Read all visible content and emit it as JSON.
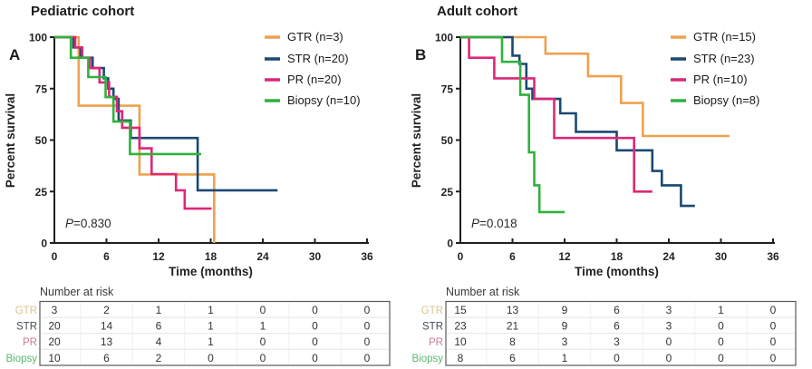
{
  "figure": {
    "background": "#ffffff",
    "axis_color": "#231f20",
    "table_border_color": "#58595b",
    "table_grid_color": "#e4e4e4"
  },
  "chart_data": [
    {
      "type": "line",
      "subtype": "kaplan-meier-step",
      "panel_label": "A",
      "title": "Pediatric cohort",
      "xlabel": "Time (months)",
      "ylabel": "Percent survival",
      "xlim": [
        0,
        36
      ],
      "ylim": [
        0,
        100
      ],
      "xticks": [
        0,
        6,
        12,
        18,
        24,
        30,
        36
      ],
      "yticks": [
        100,
        75,
        50,
        25,
        0
      ],
      "grid": false,
      "legend_position": "top-right",
      "p_value": {
        "prefix": "P",
        "rest": "=0.830"
      },
      "risk_table_header": "Number at risk",
      "series": [
        {
          "name": "GTR",
          "legend": "GTR (n=3)",
          "color": "#EFA14E",
          "risk_label_color": "#DBC38D",
          "number_at_risk": [
            3,
            2,
            1,
            1,
            0,
            0,
            0
          ],
          "steps": [
            [
              0,
              100
            ],
            [
              2.8,
              100
            ],
            [
              2.8,
              66.7
            ],
            [
              9.8,
              66.7
            ],
            [
              9.8,
              33.3
            ],
            [
              18.4,
              33.3
            ],
            [
              18.4,
              0
            ]
          ]
        },
        {
          "name": "STR",
          "legend": "STR (n=20)",
          "color": "#1A4971",
          "risk_label_color": "#414E59",
          "number_at_risk": [
            20,
            14,
            6,
            1,
            1,
            0,
            0
          ],
          "steps": [
            [
              0,
              100
            ],
            [
              2.2,
              100
            ],
            [
              2.2,
              95
            ],
            [
              3,
              95
            ],
            [
              3,
              90
            ],
            [
              4.4,
              90
            ],
            [
              4.4,
              85
            ],
            [
              5.7,
              85
            ],
            [
              5.7,
              80
            ],
            [
              6.2,
              80
            ],
            [
              6.2,
              75
            ],
            [
              6.8,
              75
            ],
            [
              6.8,
              70
            ],
            [
              7.4,
              70
            ],
            [
              7.4,
              59.5
            ],
            [
              8.8,
              59.5
            ],
            [
              8.8,
              51
            ],
            [
              16.5,
              51
            ],
            [
              16.5,
              25.6
            ],
            [
              25.7,
              25.6
            ]
          ]
        },
        {
          "name": "PR",
          "legend": "PR (n=20)",
          "color": "#DC2878",
          "risk_label_color": "#C97B96",
          "number_at_risk": [
            20,
            13,
            4,
            1,
            0,
            0,
            0
          ],
          "steps": [
            [
              0,
              100
            ],
            [
              2.4,
              100
            ],
            [
              2.4,
              95
            ],
            [
              3.2,
              95
            ],
            [
              3.2,
              90
            ],
            [
              4.1,
              90
            ],
            [
              4.1,
              85
            ],
            [
              5.2,
              85
            ],
            [
              5.2,
              78
            ],
            [
              6.3,
              78
            ],
            [
              6.3,
              71
            ],
            [
              7.2,
              71
            ],
            [
              7.2,
              64
            ],
            [
              7.8,
              64
            ],
            [
              7.8,
              56
            ],
            [
              9.8,
              56
            ],
            [
              9.8,
              46
            ],
            [
              11.2,
              46
            ],
            [
              11.2,
              33.5
            ],
            [
              14,
              33.5
            ],
            [
              14,
              25.6
            ],
            [
              15,
              25.6
            ],
            [
              15,
              16.7
            ],
            [
              18.1,
              16.7
            ]
          ]
        },
        {
          "name": "Biopsy",
          "legend": "Biopsy (n=10)",
          "color": "#31B13E",
          "risk_label_color": "#58B96B",
          "number_at_risk": [
            10,
            6,
            2,
            0,
            0,
            0,
            0
          ],
          "steps": [
            [
              0,
              100
            ],
            [
              1.9,
              100
            ],
            [
              1.9,
              90
            ],
            [
              3.9,
              90
            ],
            [
              3.9,
              80.6
            ],
            [
              5.9,
              80.6
            ],
            [
              5.9,
              70.9
            ],
            [
              6.8,
              70.9
            ],
            [
              6.8,
              59
            ],
            [
              8.7,
              59
            ],
            [
              8.7,
              43.2
            ],
            [
              16.9,
              43.2
            ]
          ]
        }
      ]
    },
    {
      "type": "line",
      "subtype": "kaplan-meier-step",
      "panel_label": "B",
      "title": "Adult cohort",
      "xlabel": "Time (months)",
      "ylabel": "Percent survival",
      "xlim": [
        0,
        36
      ],
      "ylim": [
        0,
        100
      ],
      "xticks": [
        0,
        6,
        12,
        18,
        24,
        30,
        36
      ],
      "yticks": [
        100,
        75,
        50,
        25,
        0
      ],
      "grid": false,
      "legend_position": "top-right",
      "p_value": {
        "prefix": "P",
        "rest": "=0.018"
      },
      "risk_table_header": "Number at risk",
      "series": [
        {
          "name": "GTR",
          "legend": "GTR (n=15)",
          "color": "#EFA14E",
          "risk_label_color": "#DBC38D",
          "number_at_risk": [
            15,
            13,
            9,
            6,
            3,
            1,
            0
          ],
          "steps": [
            [
              0,
              100
            ],
            [
              9.8,
              100
            ],
            [
              9.8,
              92
            ],
            [
              14.7,
              92
            ],
            [
              14.7,
              81
            ],
            [
              18.5,
              81
            ],
            [
              18.5,
              68
            ],
            [
              21,
              68
            ],
            [
              21,
              52
            ],
            [
              31,
              52
            ]
          ]
        },
        {
          "name": "STR",
          "legend": "STR (n=23)",
          "color": "#1A4971",
          "risk_label_color": "#414E59",
          "number_at_risk": [
            23,
            21,
            9,
            6,
            3,
            0,
            0
          ],
          "steps": [
            [
              0,
              100
            ],
            [
              6,
              100
            ],
            [
              6,
              91
            ],
            [
              6.8,
              91
            ],
            [
              6.8,
              87
            ],
            [
              7.6,
              87
            ],
            [
              7.6,
              75
            ],
            [
              8.3,
              75
            ],
            [
              8.3,
              70
            ],
            [
              11.5,
              70
            ],
            [
              11.5,
              63
            ],
            [
              13.3,
              63
            ],
            [
              13.3,
              54
            ],
            [
              18,
              54
            ],
            [
              18,
              45
            ],
            [
              22.1,
              45
            ],
            [
              22.1,
              35
            ],
            [
              23.2,
              35
            ],
            [
              23.2,
              28
            ],
            [
              25.4,
              28
            ],
            [
              25.4,
              18
            ],
            [
              27,
              18
            ]
          ]
        },
        {
          "name": "PR",
          "legend": "PR (n=10)",
          "color": "#DC2878",
          "risk_label_color": "#C97B96",
          "number_at_risk": [
            10,
            8,
            3,
            3,
            0,
            0,
            0
          ],
          "steps": [
            [
              0,
              100
            ],
            [
              1,
              100
            ],
            [
              1,
              90
            ],
            [
              3.9,
              90
            ],
            [
              3.9,
              80
            ],
            [
              8.5,
              80
            ],
            [
              8.5,
              70
            ],
            [
              10.8,
              70
            ],
            [
              10.8,
              51
            ],
            [
              20,
              51
            ],
            [
              20,
              25
            ],
            [
              22.1,
              25
            ]
          ]
        },
        {
          "name": "Biopsy",
          "legend": "Biopsy (n=8)",
          "color": "#31B13E",
          "risk_label_color": "#58B96B",
          "number_at_risk": [
            8,
            6,
            1,
            0,
            0,
            0,
            0
          ],
          "steps": [
            [
              0,
              100
            ],
            [
              4.8,
              100
            ],
            [
              4.8,
              88
            ],
            [
              6.9,
              88
            ],
            [
              6.9,
              72
            ],
            [
              7.9,
              72
            ],
            [
              7.9,
              44
            ],
            [
              8.5,
              44
            ],
            [
              8.5,
              28
            ],
            [
              9.1,
              28
            ],
            [
              9.1,
              15
            ],
            [
              12,
              15
            ]
          ]
        }
      ]
    }
  ]
}
